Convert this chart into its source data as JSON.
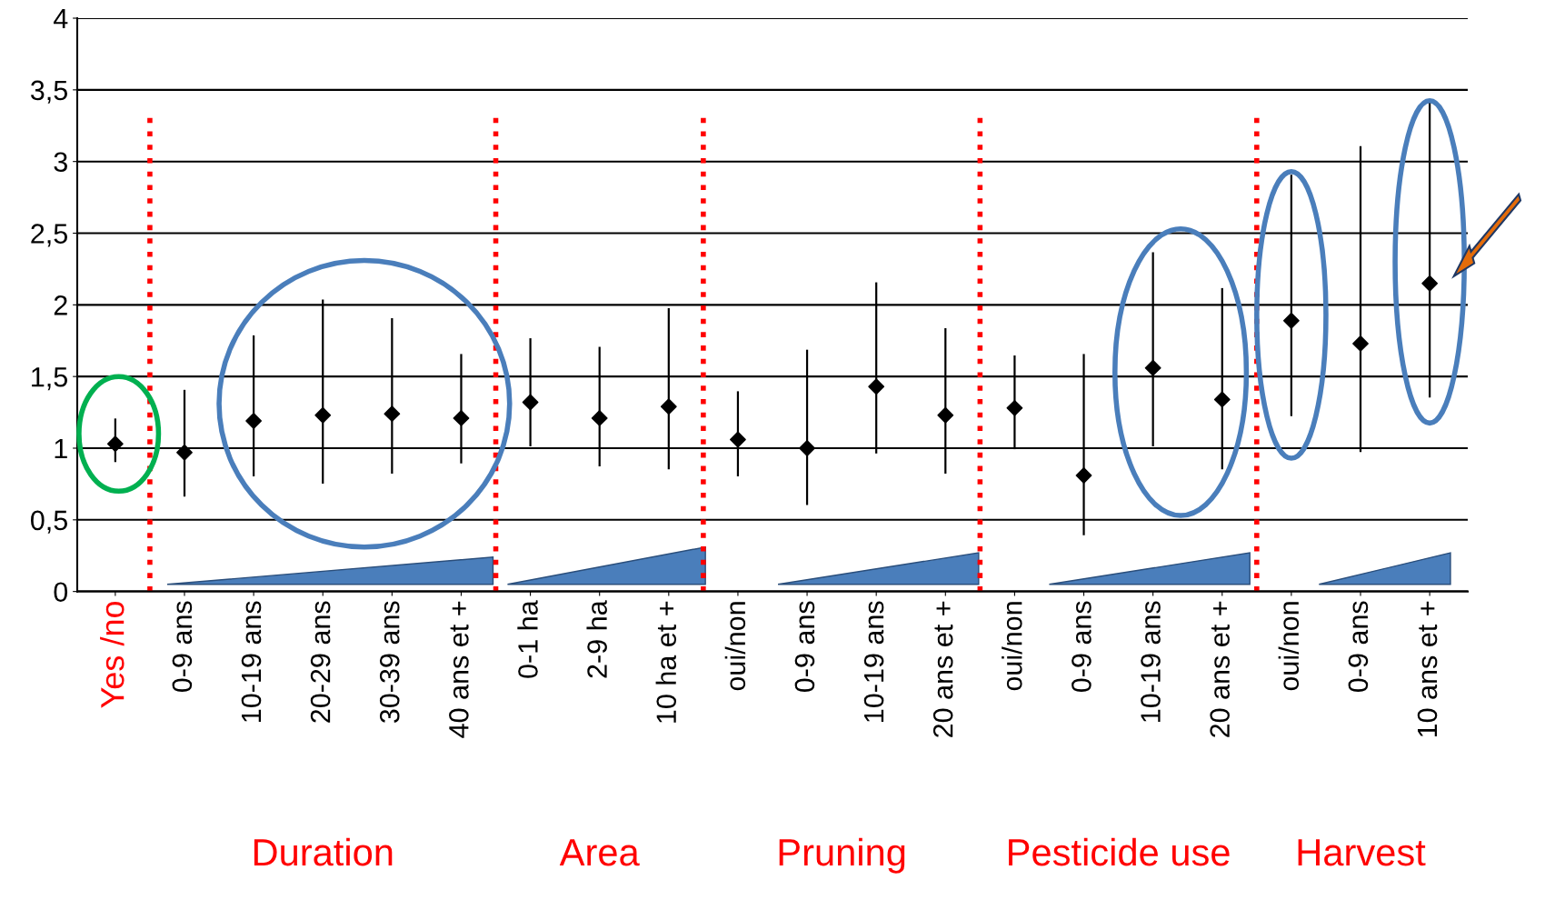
{
  "chart_data": {
    "type": "scatter",
    "categories": [
      "Yes /no",
      "0-9 ans",
      "10-19 ans",
      "20-29 ans",
      "30-39 ans",
      "40 ans et +",
      "0-1 ha",
      "2-9 ha",
      "10 ha et +",
      "oui/non",
      "0-9 ans",
      "10-19 ans",
      "20 ans et +",
      "oui/non",
      "0-9 ans",
      "10-19 ans",
      "20 ans et +",
      "oui/non",
      "0-9 ans",
      "10 ans et +"
    ],
    "series": [
      {
        "color": "#000000",
        "values": [
          1.03,
          0.97,
          1.19,
          1.23,
          1.24,
          1.21,
          1.32,
          1.21,
          1.29,
          1.06,
          1.0,
          1.43,
          1.23,
          1.28,
          0.81,
          1.56,
          1.34,
          1.89,
          1.73,
          2.15
        ],
        "errors": [
          [
            0.91,
            1.2
          ],
          [
            0.67,
            1.4
          ],
          [
            0.81,
            1.78
          ],
          [
            0.76,
            2.03
          ],
          [
            0.83,
            1.9
          ],
          [
            0.9,
            1.65
          ],
          [
            1.02,
            1.76
          ],
          [
            0.88,
            1.7
          ],
          [
            0.86,
            1.97
          ],
          [
            0.81,
            1.39
          ],
          [
            0.61,
            1.68
          ],
          [
            0.97,
            2.15
          ],
          [
            0.83,
            1.83
          ],
          [
            1.0,
            1.64
          ],
          [
            0.4,
            1.65
          ],
          [
            1.02,
            2.36
          ],
          [
            0.86,
            2.11
          ],
          [
            1.23,
            2.9
          ],
          [
            0.98,
            3.1
          ],
          [
            1.36,
            3.41
          ]
        ]
      }
    ],
    "ylim": [
      0,
      4
    ],
    "yticks": [
      0,
      {
        "value": 0.5,
        "label": "0,5"
      },
      1,
      {
        "value": 1.5,
        "label": "1,5"
      },
      2,
      {
        "value": 2.5,
        "label": "2,5"
      },
      3,
      {
        "value": 3.5,
        "label": "3,5"
      },
      4
    ],
    "grid": "y",
    "marker": "diamond",
    "annotations": [
      "Duration",
      "Area",
      "Pruning",
      "Pesticide use",
      "Harvest"
    ]
  }
}
